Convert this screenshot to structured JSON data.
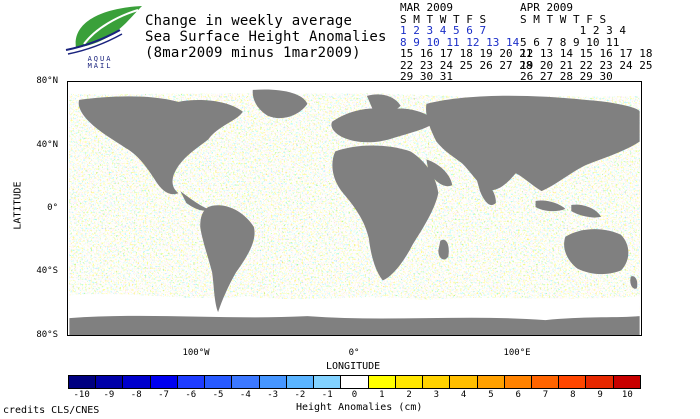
{
  "title": {
    "line1": "Change in weekly average",
    "line2": "Sea Surface Height Anomalies",
    "line3": "(8mar2009 minus 1mar2009)"
  },
  "logo": {
    "text1": "AQUA",
    "text2": "MAIL"
  },
  "calendars": [
    {
      "name": "MAR 2009",
      "days_header": "S M T W T F S",
      "weeks": [
        [
          "1",
          "2",
          "3",
          "4",
          "5",
          "6",
          "7"
        ],
        [
          "8",
          "9",
          "10",
          "11",
          "12",
          "13",
          "14"
        ],
        [
          "15",
          "16",
          "17",
          "18",
          "19",
          "20",
          "21"
        ],
        [
          "22",
          "23",
          "24",
          "25",
          "26",
          "27",
          "28"
        ],
        [
          "29",
          "30",
          "31"
        ]
      ],
      "highlighted_weeks": [
        0,
        1
      ]
    },
    {
      "name": "APR 2009",
      "days_header": "S M T W T F S",
      "weeks": [
        [
          "",
          "",
          "",
          "1",
          "2",
          "3",
          "4"
        ],
        [
          "5",
          "6",
          "7",
          "8",
          "9",
          "10",
          "11"
        ],
        [
          "12",
          "13",
          "14",
          "15",
          "16",
          "17",
          "18"
        ],
        [
          "19",
          "20",
          "21",
          "22",
          "23",
          "24",
          "25"
        ],
        [
          "26",
          "27",
          "28",
          "29",
          "30"
        ]
      ],
      "highlighted_weeks": []
    }
  ],
  "map": {
    "ylabel": "LATITUDE",
    "xlabel": "LONGITUDE",
    "yticks": [
      "80°N",
      "40°N",
      "0°",
      "40°S",
      "80°S"
    ],
    "xticks": [
      "100°W",
      "0°",
      "100°E"
    ]
  },
  "colorbar": {
    "label": "Height Anomalies (cm)",
    "ticks": [
      "-10",
      "-9",
      "-8",
      "-7",
      "-6",
      "-5",
      "-4",
      "-3",
      "-2",
      "-1",
      "0",
      "1",
      "2",
      "3",
      "4",
      "5",
      "6",
      "7",
      "8",
      "9",
      "10"
    ],
    "colors": [
      "#000080",
      "#0000a8",
      "#0000cc",
      "#0000f0",
      "#1e3cff",
      "#285aff",
      "#3c78ff",
      "#4696ff",
      "#5ab4ff",
      "#82d2ff",
      "#ffffff",
      "#ffff00",
      "#ffe600",
      "#ffd200",
      "#ffbe00",
      "#ffa000",
      "#ff8200",
      "#ff6400",
      "#ff4600",
      "#e62800",
      "#c80000"
    ]
  },
  "credits": "credits CLS/CNES"
}
